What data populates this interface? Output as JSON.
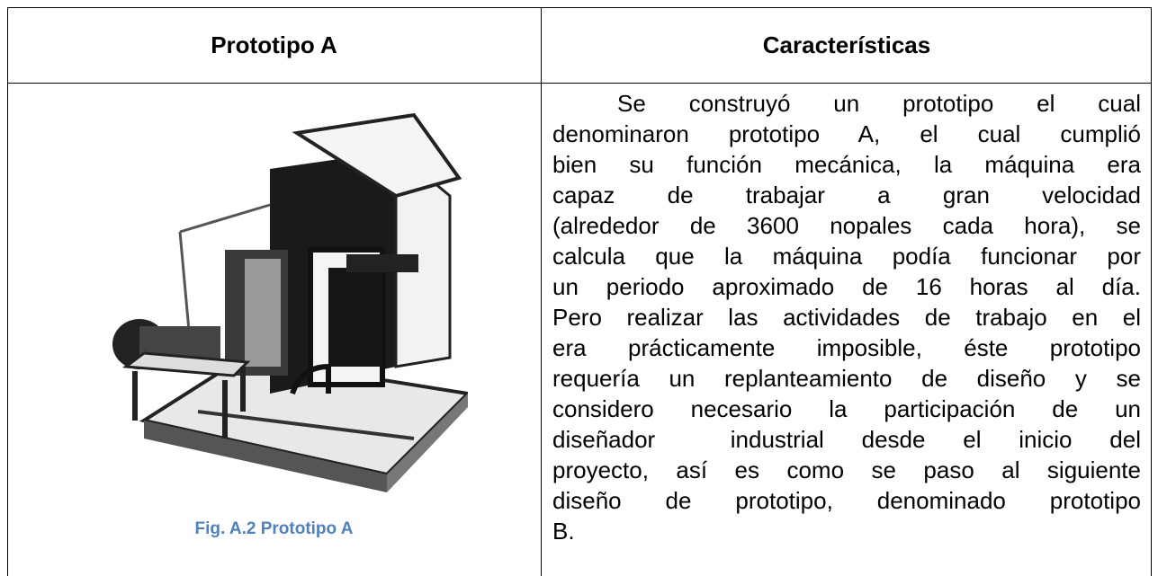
{
  "table": {
    "header": [
      "Prototipo A",
      "Características"
    ],
    "caption": "Fig. A.2 Prototipo A",
    "lines": [
      "Se construyó un prototipo el cual",
      "denominaron prototipo A, el cual cumplió",
      "bien su función mecánica, la máquina era",
      "capaz de trabajar a gran velocidad",
      "(alrededor de 3600 nopales cada hora), se",
      "calcula que la máquina podía funcionar por",
      "un periodo aproximado de 16 horas al día.",
      "Pero realizar las actividades de trabajo en el",
      "era prácticamente imposible, éste prototipo",
      "requería un replanteamiento de diseño y se",
      "considero necesario la participación de un",
      "diseñador  industrial desde el inicio del",
      "proyecto, así es como se paso al siguiente",
      "diseño de prototipo, denominado prototipo",
      "B."
    ]
  }
}
